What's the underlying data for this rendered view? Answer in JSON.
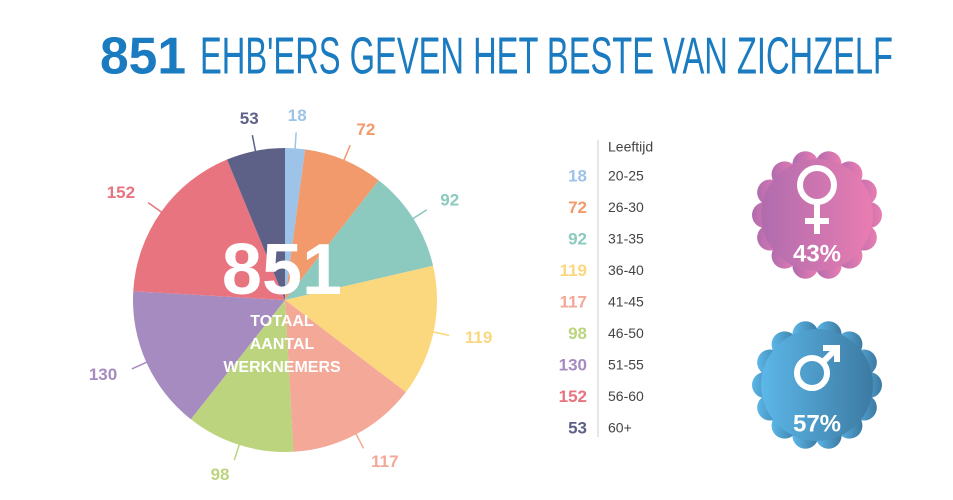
{
  "chart_data": {
    "type": "pie",
    "title": {
      "total": 851,
      "text": "EHB'ERS GEVEN HET BESTE VAN ZICHZELF"
    },
    "center_label": [
      "TOTAAL",
      "AANTAL",
      "WERKNEMERS"
    ],
    "legend_title": "Leeftijd",
    "categories": [
      "20-25",
      "26-30",
      "31-35",
      "36-40",
      "41-45",
      "46-50",
      "51-55",
      "56-60",
      "60+"
    ],
    "values": [
      18,
      72,
      92,
      119,
      117,
      98,
      130,
      152,
      53
    ],
    "colors": [
      "#9dc3e8",
      "#f29a6b",
      "#8cc9bf",
      "#fbd77e",
      "#f3a898",
      "#bcd47e",
      "#a68bc0",
      "#e87480",
      "#5d6188"
    ],
    "gender": {
      "values": [
        43,
        57
      ],
      "value_labels": [
        "43%",
        "57%"
      ]
    }
  }
}
